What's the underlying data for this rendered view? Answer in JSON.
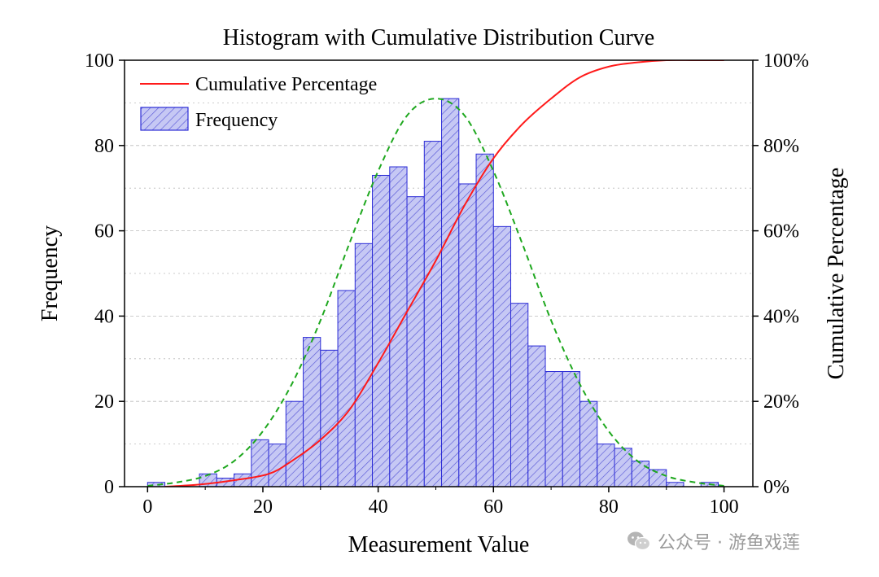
{
  "chart_data": {
    "type": "bar",
    "title": "Histogram with Cumulative Distribution Curve",
    "xlabel": "Measurement Value",
    "ylabel": "Frequency",
    "y2label": "Cumulative Percentage",
    "xlim": [
      -4,
      105
    ],
    "ylim": [
      0,
      100
    ],
    "y2lim": [
      0,
      100
    ],
    "xticks": [
      0,
      20,
      40,
      60,
      80,
      100
    ],
    "yticks": [
      0,
      20,
      40,
      60,
      80,
      100
    ],
    "y2ticks": [
      "0%",
      "20%",
      "40%",
      "60%",
      "80%",
      "100%"
    ],
    "grid": true,
    "legend_position": "top-left",
    "legend": [
      "Cumulative Percentage",
      "Frequency"
    ],
    "bin_edges": [
      0,
      3,
      6,
      9,
      12,
      15,
      18,
      21,
      24,
      27,
      30,
      33,
      36,
      39,
      42,
      45,
      48,
      51,
      54,
      57,
      60,
      63,
      66,
      69,
      72,
      75,
      78,
      81,
      84,
      87,
      90,
      93,
      96,
      99
    ],
    "frequencies": [
      1,
      0,
      0,
      3,
      2,
      3,
      11,
      10,
      20,
      35,
      32,
      46,
      57,
      73,
      75,
      68,
      81,
      91,
      71,
      78,
      61,
      43,
      33,
      27,
      27,
      20,
      10,
      9,
      6,
      4,
      1,
      0,
      1
    ],
    "normal_curve": {
      "x": [
        0,
        5,
        10,
        15,
        20,
        25,
        30,
        35,
        40,
        45,
        50,
        55,
        60,
        65,
        70,
        75,
        80,
        85,
        90,
        95,
        100
      ],
      "y": [
        0.2,
        1,
        2.5,
        6,
        13,
        24,
        39,
        57,
        74,
        87,
        91,
        87,
        74,
        57,
        39,
        24,
        13,
        6,
        2.5,
        1,
        0.2
      ]
    },
    "cumulative_curve": {
      "x": [
        3,
        9,
        15,
        21,
        25,
        30,
        35,
        40,
        45,
        50,
        55,
        60,
        65,
        70,
        75,
        80,
        85,
        90,
        95,
        100
      ],
      "y": [
        0,
        0.5,
        1.5,
        3,
        6,
        11,
        18,
        29,
        41,
        53,
        66,
        77,
        85,
        91,
        96,
        98.5,
        99.5,
        100,
        100,
        100
      ]
    },
    "colors": {
      "bar_fill": "#c6c8f4",
      "bar_edge": "#2b2bd6",
      "hatch": "#5a5ad8",
      "cumulative_line": "#ff1a1a",
      "normal_line": "#1fa81f",
      "grid": "#bbbbbb",
      "axis": "#000000"
    }
  },
  "watermark": {
    "text": "公众号 · 游鱼戏莲",
    "icon": "wechat-icon"
  }
}
